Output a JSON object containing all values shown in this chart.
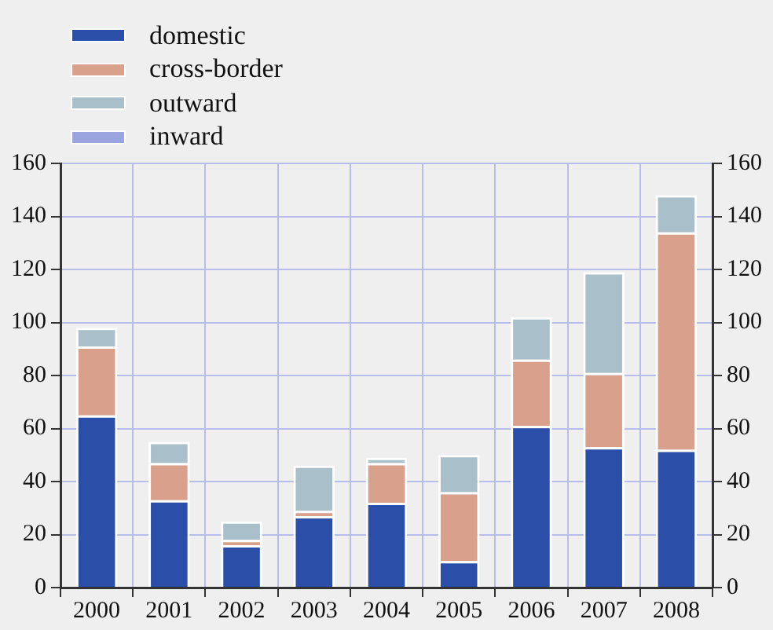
{
  "chart_data": {
    "type": "bar",
    "stacked": true,
    "categories": [
      "2000",
      "2001",
      "2002",
      "2003",
      "2004",
      "2005",
      "2006",
      "2007",
      "2008"
    ],
    "series": [
      {
        "name": "domestic",
        "color": "#2b4fa8",
        "values": [
          65,
          33,
          16,
          27,
          32,
          10,
          61,
          53,
          52
        ]
      },
      {
        "name": "cross-border",
        "color": "#d9a08c",
        "values": [
          26,
          14,
          2,
          2,
          15,
          26,
          25,
          28,
          82
        ]
      },
      {
        "name": "outward",
        "color": "#a9bfc9",
        "values": [
          7,
          8,
          7,
          17,
          2,
          14,
          16,
          38,
          14
        ]
      },
      {
        "name": "inward",
        "color": "#9aa5e0",
        "values": [
          0,
          0,
          0,
          0,
          0,
          0,
          0,
          0,
          0
        ]
      }
    ],
    "ylim": [
      0,
      160
    ],
    "yticks": [
      0,
      20,
      40,
      60,
      80,
      100,
      120,
      140,
      160
    ],
    "y2lim": [
      0,
      160
    ],
    "y2ticks": [
      0,
      20,
      40,
      60,
      80,
      100,
      120,
      140,
      160
    ],
    "grid": true,
    "legend": "top left"
  }
}
